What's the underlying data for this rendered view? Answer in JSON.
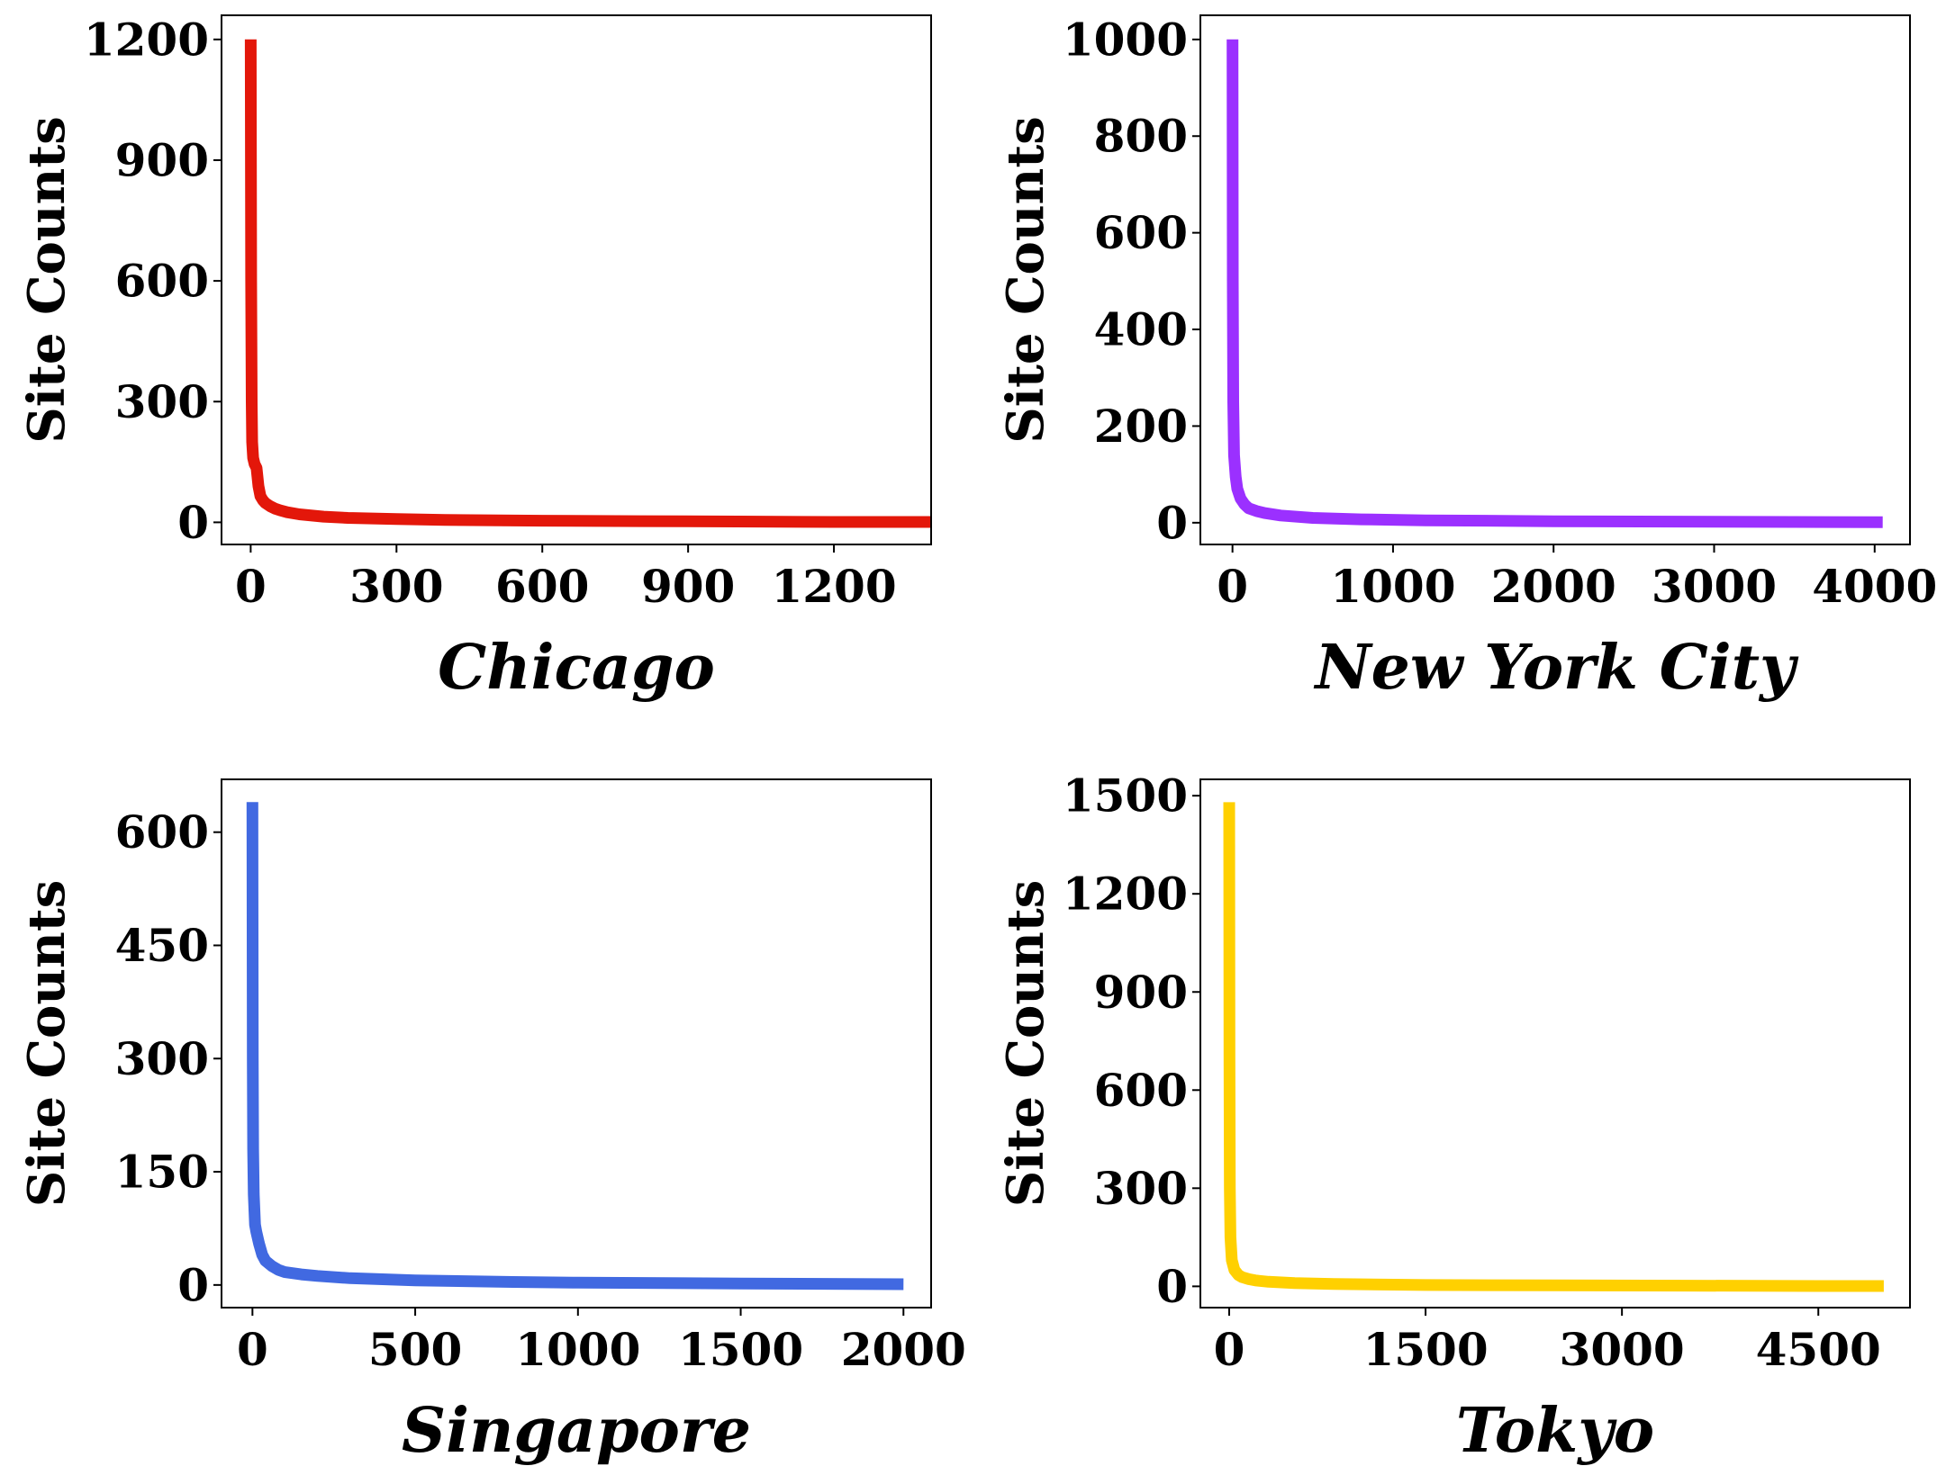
{
  "chart_data": [
    {
      "type": "line",
      "xlabel": "Chicago",
      "ylabel": "Site Counts",
      "color": "#e3170a",
      "xlim": [
        -60,
        1400
      ],
      "ylim": [
        -55,
        1260
      ],
      "xticks": [
        0,
        300,
        600,
        900,
        1200
      ],
      "yticks": [
        0,
        300,
        600,
        900,
        1200
      ],
      "series": [
        {
          "x": [
            0,
            1,
            2,
            3,
            5,
            8,
            12,
            16,
            20,
            25,
            30,
            40,
            50,
            60,
            75,
            100,
            150,
            200,
            300,
            400,
            600,
            800,
            1000,
            1200,
            1400
          ],
          "y": [
            1200,
            600,
            300,
            200,
            160,
            145,
            135,
            90,
            65,
            55,
            48,
            40,
            34,
            30,
            25,
            20,
            14,
            11,
            8,
            6,
            4,
            3,
            2,
            1,
            1
          ]
        }
      ]
    },
    {
      "type": "line",
      "xlabel": "New York City",
      "ylabel": "Site Counts",
      "color": "#9b30ff",
      "xlim": [
        -200,
        4220
      ],
      "ylim": [
        -45,
        1050
      ],
      "xticks": [
        0,
        1000,
        2000,
        3000,
        4000
      ],
      "yticks": [
        0,
        200,
        400,
        600,
        800,
        1000
      ],
      "series": [
        {
          "x": [
            0,
            2,
            5,
            10,
            20,
            30,
            50,
            75,
            100,
            150,
            200,
            300,
            500,
            800,
            1200,
            2000,
            3000,
            4050
          ],
          "y": [
            1000,
            500,
            250,
            140,
            95,
            70,
            50,
            38,
            30,
            24,
            20,
            15,
            10,
            7,
            5,
            3,
            2,
            1
          ]
        }
      ]
    },
    {
      "type": "line",
      "xlabel": "Singapore",
      "ylabel": "Site Counts",
      "color": "#4169e1",
      "xlim": [
        -95,
        2085
      ],
      "ylim": [
        -30,
        670
      ],
      "xticks": [
        0,
        500,
        1000,
        1500,
        2000
      ],
      "yticks": [
        0,
        150,
        300,
        450,
        600
      ],
      "series": [
        {
          "x": [
            0,
            1,
            2,
            4,
            8,
            12,
            20,
            30,
            40,
            60,
            80,
            100,
            150,
            200,
            300,
            500,
            800,
            1000,
            1500,
            2000
          ],
          "y": [
            640,
            300,
            180,
            120,
            80,
            70,
            55,
            40,
            32,
            25,
            20,
            17,
            14,
            12,
            9,
            6,
            4,
            3,
            2,
            1
          ]
        }
      ]
    },
    {
      "type": "line",
      "xlabel": "Tokyo",
      "ylabel": "Site Counts",
      "color": "#ffd000",
      "xlim": [
        -220,
        5200
      ],
      "ylim": [
        -65,
        1550
      ],
      "xticks": [
        0,
        1500,
        3000,
        4500
      ],
      "yticks": [
        0,
        300,
        600,
        900,
        1200,
        1500
      ],
      "series": [
        {
          "x": [
            0,
            2,
            5,
            10,
            20,
            40,
            70,
            100,
            150,
            200,
            300,
            500,
            800,
            1500,
            2500,
            3500,
            4500,
            5000
          ],
          "y": [
            1480,
            700,
            300,
            150,
            80,
            50,
            35,
            28,
            22,
            18,
            14,
            10,
            7,
            4,
            3,
            2,
            1,
            1
          ]
        }
      ]
    }
  ]
}
